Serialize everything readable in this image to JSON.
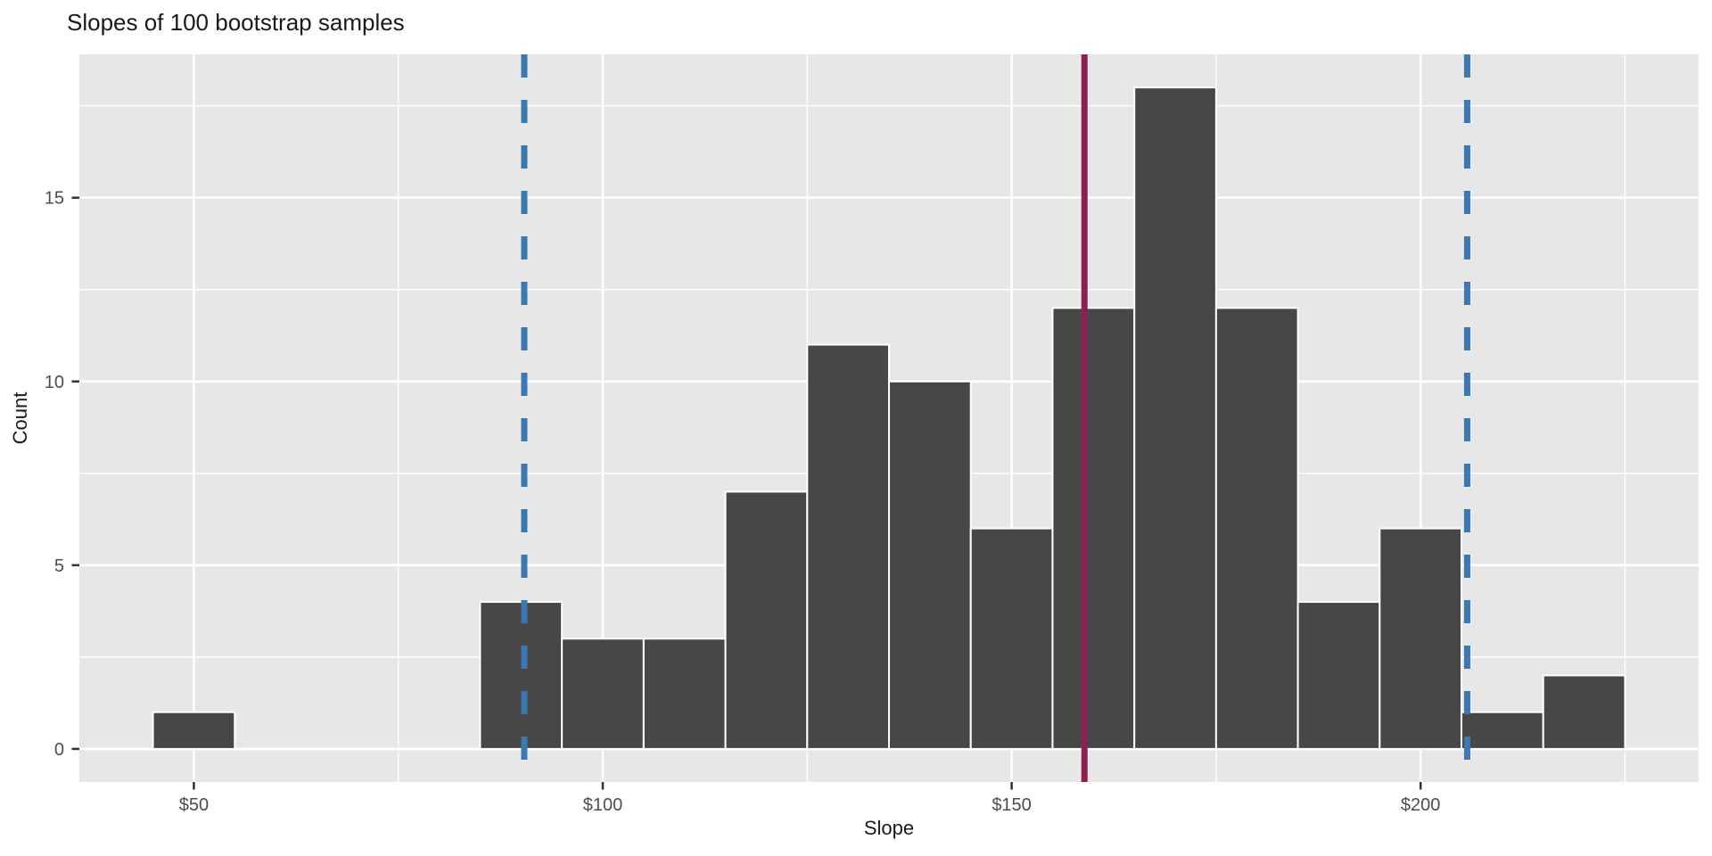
{
  "chart_data": {
    "type": "bar",
    "subtype": "histogram",
    "title": "Slopes of 100 bootstrap samples",
    "xlabel": "Slope",
    "ylabel": "Count",
    "legend_position": "none",
    "grid": "on",
    "bin_width": 10,
    "bins": [
      {
        "start": 45,
        "count": 1
      },
      {
        "start": 85,
        "count": 4
      },
      {
        "start": 95,
        "count": 3
      },
      {
        "start": 105,
        "count": 3
      },
      {
        "start": 115,
        "count": 7
      },
      {
        "start": 125,
        "count": 11
      },
      {
        "start": 135,
        "count": 10
      },
      {
        "start": 145,
        "count": 6
      },
      {
        "start": 155,
        "count": 12
      },
      {
        "start": 165,
        "count": 18
      },
      {
        "start": 175,
        "count": 12
      },
      {
        "start": 185,
        "count": 4
      },
      {
        "start": 195,
        "count": 6
      },
      {
        "start": 205,
        "count": 1
      },
      {
        "start": 215,
        "count": 2
      }
    ],
    "x_ticks": [
      {
        "value": 50,
        "label": "$50"
      },
      {
        "value": 100,
        "label": "$100"
      },
      {
        "value": 150,
        "label": "$150"
      },
      {
        "value": 200,
        "label": "$200"
      }
    ],
    "x_minor_ticks": [
      75,
      125,
      175,
      225
    ],
    "y_ticks": [
      {
        "value": 0,
        "label": "0"
      },
      {
        "value": 5,
        "label": "5"
      },
      {
        "value": 10,
        "label": "10"
      },
      {
        "value": 15,
        "label": "15"
      }
    ],
    "y_minor_ticks": [
      2.5,
      7.5,
      12.5,
      17.5
    ],
    "xlim": [
      36,
      234
    ],
    "ylim": [
      -0.9,
      18.9
    ],
    "vlines": [
      {
        "x": 90.4,
        "style": "dashed",
        "color": "#3C79B2",
        "name": "bootstrap-ci-lower-line"
      },
      {
        "x": 158.9,
        "style": "solid",
        "color": "#8A2151",
        "name": "observed-slope-line"
      },
      {
        "x": 205.7,
        "style": "dashed",
        "color": "#3C79B2",
        "name": "bootstrap-ci-upper-line"
      }
    ],
    "colors": {
      "bar_fill": "#474747",
      "bar_border": "#FFFFFF",
      "panel_bg": "#E7E7E7",
      "grid_major": "#FFFFFF",
      "grid_minor": "#FFFFFF",
      "tick_label": "#4d4d4d",
      "axis_title": "#1a1a1a",
      "tick_mark": "#333333"
    }
  }
}
